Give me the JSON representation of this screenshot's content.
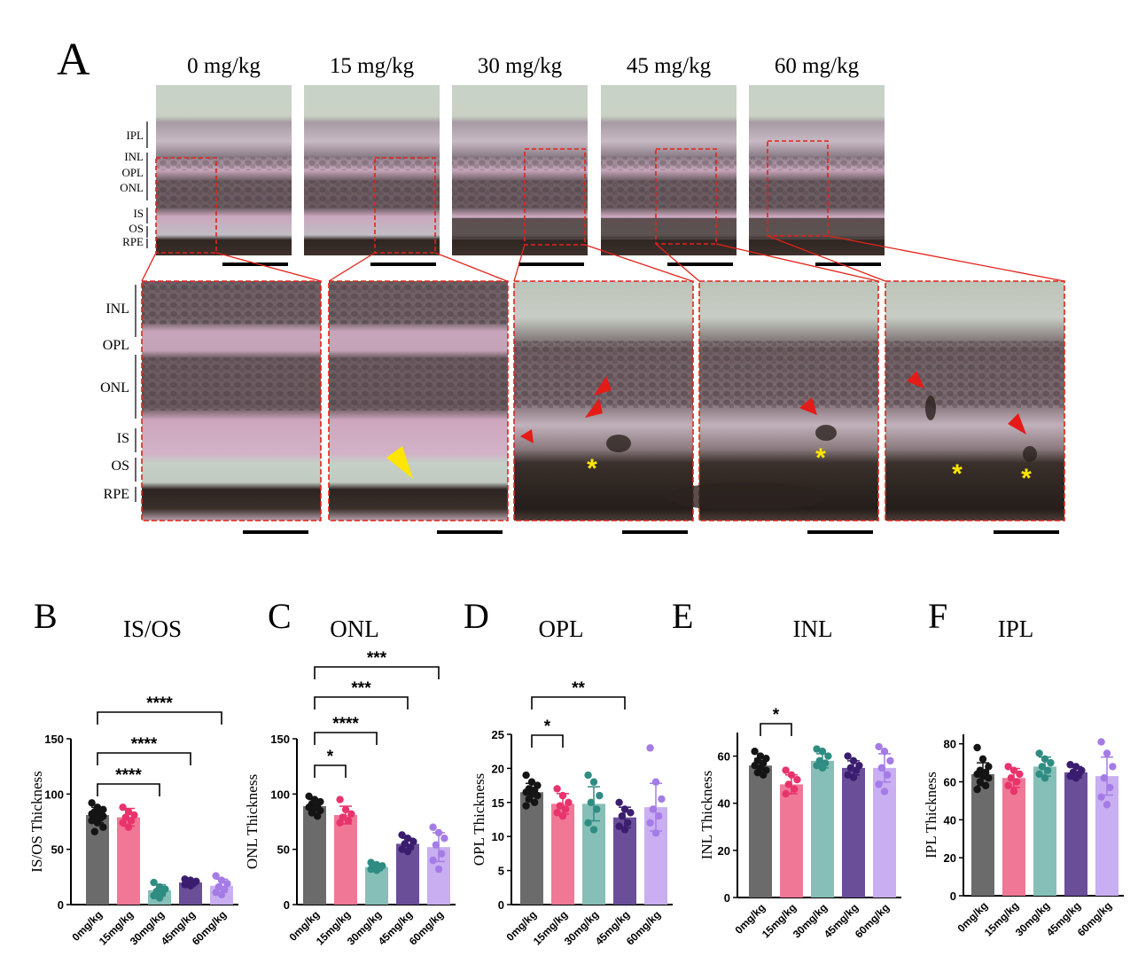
{
  "panel_a": {
    "letter": "A",
    "doses": [
      "0 mg/kg",
      "15 mg/kg",
      "30 mg/kg",
      "45 mg/kg",
      "60 mg/kg"
    ],
    "top_layer_labels": [
      "IPL",
      "INL",
      "OPL",
      "ONL",
      "IS",
      "OS",
      "RPE"
    ],
    "zoom_layer_labels": [
      "INL",
      "OPL",
      "ONL",
      "IS",
      "OS",
      "RPE"
    ],
    "colors": {
      "tissue_bg": "#c9d3c6",
      "pink_layer": "#c9a7bd",
      "nuclear_layer": "#6f5f64",
      "dark_rpe": "#2b2320",
      "zoom_box": "#e2231a",
      "arrow_red": "#e41b17",
      "arrow_yellow": "#ffe600",
      "asterisk_yellow": "#ffe600"
    },
    "annotations": {
      "15mg": {
        "yellow_arrows": 1
      },
      "30mg": {
        "red_arrows": 3,
        "asterisks": 1
      },
      "45mg": {
        "red_arrows": 1,
        "asterisks": 1
      },
      "60mg": {
        "red_arrows": 2,
        "asterisks": 2
      }
    }
  },
  "chart_data": [
    {
      "panel": "B",
      "type": "bar",
      "title": "IS/OS",
      "ylabel": "IS/OS Thickness",
      "xlabel": "",
      "ylim": [
        0,
        150
      ],
      "yticks": [
        0,
        50,
        100,
        150
      ],
      "categories": [
        "0mg/kg",
        "15mg/kg",
        "30mg/kg",
        "45mg/kg",
        "60mg/kg"
      ],
      "values": [
        81,
        79,
        13,
        20,
        17
      ],
      "errors": [
        7,
        8,
        5,
        2,
        6
      ],
      "points": [
        [
          92,
          88,
          86,
          84,
          83,
          82,
          81,
          80,
          79,
          78,
          76,
          74,
          70,
          66
        ],
        [
          88,
          84,
          81,
          79,
          76,
          74,
          70
        ],
        [
          20,
          16,
          14,
          12,
          10,
          8,
          6
        ],
        [
          23,
          22,
          21,
          20,
          19,
          18,
          17
        ],
        [
          26,
          22,
          19,
          16,
          14,
          11,
          9
        ]
      ],
      "significance": [
        {
          "from": 0,
          "to": 2,
          "label": "****"
        },
        {
          "from": 0,
          "to": 3,
          "label": "****"
        },
        {
          "from": 0,
          "to": 4,
          "label": "****"
        }
      ]
    },
    {
      "panel": "C",
      "type": "bar",
      "title": "ONL",
      "ylabel": "ONL Thickness",
      "xlabel": "",
      "ylim": [
        0,
        150
      ],
      "yticks": [
        0,
        50,
        100,
        150
      ],
      "categories": [
        "0mg/kg",
        "15mg/kg",
        "30mg/kg",
        "45mg/kg",
        "60mg/kg"
      ],
      "values": [
        89,
        81,
        34,
        55,
        52
      ],
      "errors": [
        6,
        8,
        3,
        5,
        13
      ],
      "points": [
        [
          98,
          95,
          93,
          91,
          89,
          88,
          87,
          85,
          83,
          80
        ],
        [
          95,
          86,
          82,
          79,
          76,
          74
        ],
        [
          38,
          36,
          35,
          34,
          33,
          32,
          31
        ],
        [
          63,
          60,
          57,
          55,
          52,
          50,
          48
        ],
        [
          70,
          65,
          60,
          54,
          46,
          40,
          32
        ]
      ],
      "significance": [
        {
          "from": 0,
          "to": 1,
          "label": "*"
        },
        {
          "from": 0,
          "to": 2,
          "label": "****"
        },
        {
          "from": 0,
          "to": 3,
          "label": "***"
        },
        {
          "from": 0,
          "to": 4,
          "label": "***"
        }
      ]
    },
    {
      "panel": "D",
      "type": "bar",
      "title": "OPL",
      "ylabel": "OPL Thickness",
      "xlabel": "",
      "ylim": [
        0,
        25
      ],
      "yticks": [
        0,
        5,
        10,
        15,
        20,
        25
      ],
      "categories": [
        "0mg/kg",
        "15mg/kg",
        "30mg/kg",
        "45mg/kg",
        "60mg/kg"
      ],
      "values": [
        16.5,
        14.8,
        14.8,
        12.8,
        14.3
      ],
      "errors": [
        1.3,
        1.5,
        2.5,
        1.5,
        3.5
      ],
      "points": [
        [
          19,
          18,
          17.5,
          17,
          16.8,
          16.5,
          16.2,
          16,
          15.5,
          15,
          14.5
        ],
        [
          17,
          16,
          15,
          14.5,
          14,
          13.5,
          13
        ],
        [
          19,
          18,
          16,
          15,
          14,
          12,
          11
        ],
        [
          15,
          14,
          13.5,
          13,
          12,
          11.5,
          11
        ],
        [
          23,
          18,
          15.5,
          14,
          13,
          12,
          10.5
        ]
      ],
      "significance": [
        {
          "from": 0,
          "to": 1,
          "label": "*"
        },
        {
          "from": 0,
          "to": 3,
          "label": "**"
        }
      ]
    },
    {
      "panel": "E",
      "type": "bar",
      "title": "INL",
      "ylabel": "INL Thickness",
      "xlabel": "",
      "ylim": [
        0,
        70
      ],
      "yticks": [
        0,
        20,
        40,
        60
      ],
      "categories": [
        "0mg/kg",
        "15mg/kg",
        "30mg/kg",
        "45mg/kg",
        "60mg/kg"
      ],
      "values": [
        56,
        48,
        58,
        55,
        55
      ],
      "errors": [
        3,
        4,
        3,
        3,
        6
      ],
      "points": [
        [
          62,
          60,
          59,
          58,
          57,
          56,
          55,
          54,
          53,
          52
        ],
        [
          54,
          52,
          50,
          48,
          46,
          44
        ],
        [
          63,
          62,
          60,
          58,
          57,
          56,
          55
        ],
        [
          60,
          58,
          56,
          55,
          54,
          52,
          51
        ],
        [
          64,
          62,
          58,
          55,
          52,
          48,
          45
        ]
      ],
      "significance": [
        {
          "from": 0,
          "to": 1,
          "label": "*"
        }
      ]
    },
    {
      "panel": "F",
      "type": "bar",
      "title": "IPL",
      "ylabel": "IPL Thickness",
      "xlabel": "",
      "ylim": [
        0,
        85
      ],
      "yticks": [
        0,
        20,
        40,
        60,
        80
      ],
      "categories": [
        "0mg/kg",
        "15mg/kg",
        "30mg/kg",
        "45mg/kg",
        "60mg/kg"
      ],
      "values": [
        64,
        62,
        68,
        65,
        63
      ],
      "errors": [
        6,
        5,
        5,
        3,
        10
      ],
      "points": [
        [
          78,
          72,
          68,
          66,
          65,
          64,
          63,
          62,
          60,
          58,
          56
        ],
        [
          68,
          66,
          64,
          62,
          60,
          58,
          55
        ],
        [
          75,
          72,
          70,
          68,
          66,
          64,
          62
        ],
        [
          69,
          68,
          66,
          65,
          64,
          63,
          62
        ],
        [
          81,
          75,
          68,
          62,
          57,
          52,
          48
        ]
      ],
      "significance": []
    }
  ],
  "bar_colors": {
    "fill": [
      "#6b6b6b",
      "#f07896",
      "#86bfb7",
      "#6a4e98",
      "#c9aff2"
    ],
    "dots": [
      "#141414",
      "#e8336c",
      "#2f8c82",
      "#3a1d6e",
      "#a57be6"
    ]
  }
}
